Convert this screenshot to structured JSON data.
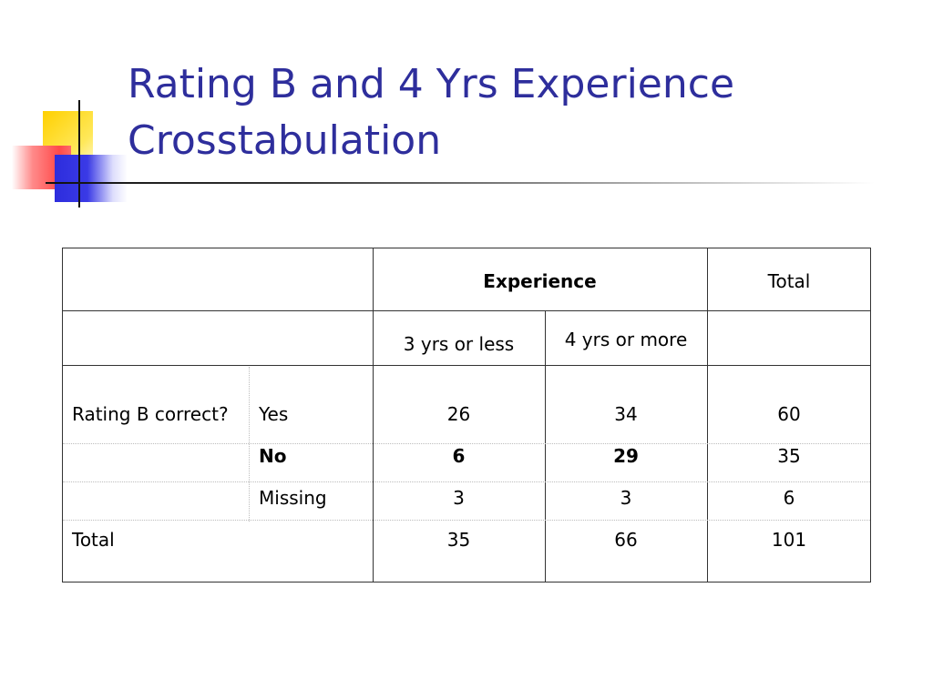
{
  "slide": {
    "title_line1": "Rating B and 4 Yrs Experience",
    "title_line2": "Crosstabulation",
    "title_color": "#2e2e9c"
  },
  "table": {
    "header": {
      "experience": "Experience",
      "total": "Total",
      "col1": "3 yrs or less",
      "col2": "4 yrs or more"
    },
    "row_variable": "Rating B correct?",
    "rows": [
      {
        "label": "Yes",
        "c1": "26",
        "c2": "34",
        "total": "60"
      },
      {
        "label": "No",
        "c1": "6",
        "c2": "29",
        "total": "35"
      },
      {
        "label": "Missing",
        "c1": "3",
        "c2": "3",
        "total": "6"
      }
    ],
    "total_row": {
      "label": "Total",
      "c1": "35",
      "c2": "66",
      "total": "101"
    }
  }
}
